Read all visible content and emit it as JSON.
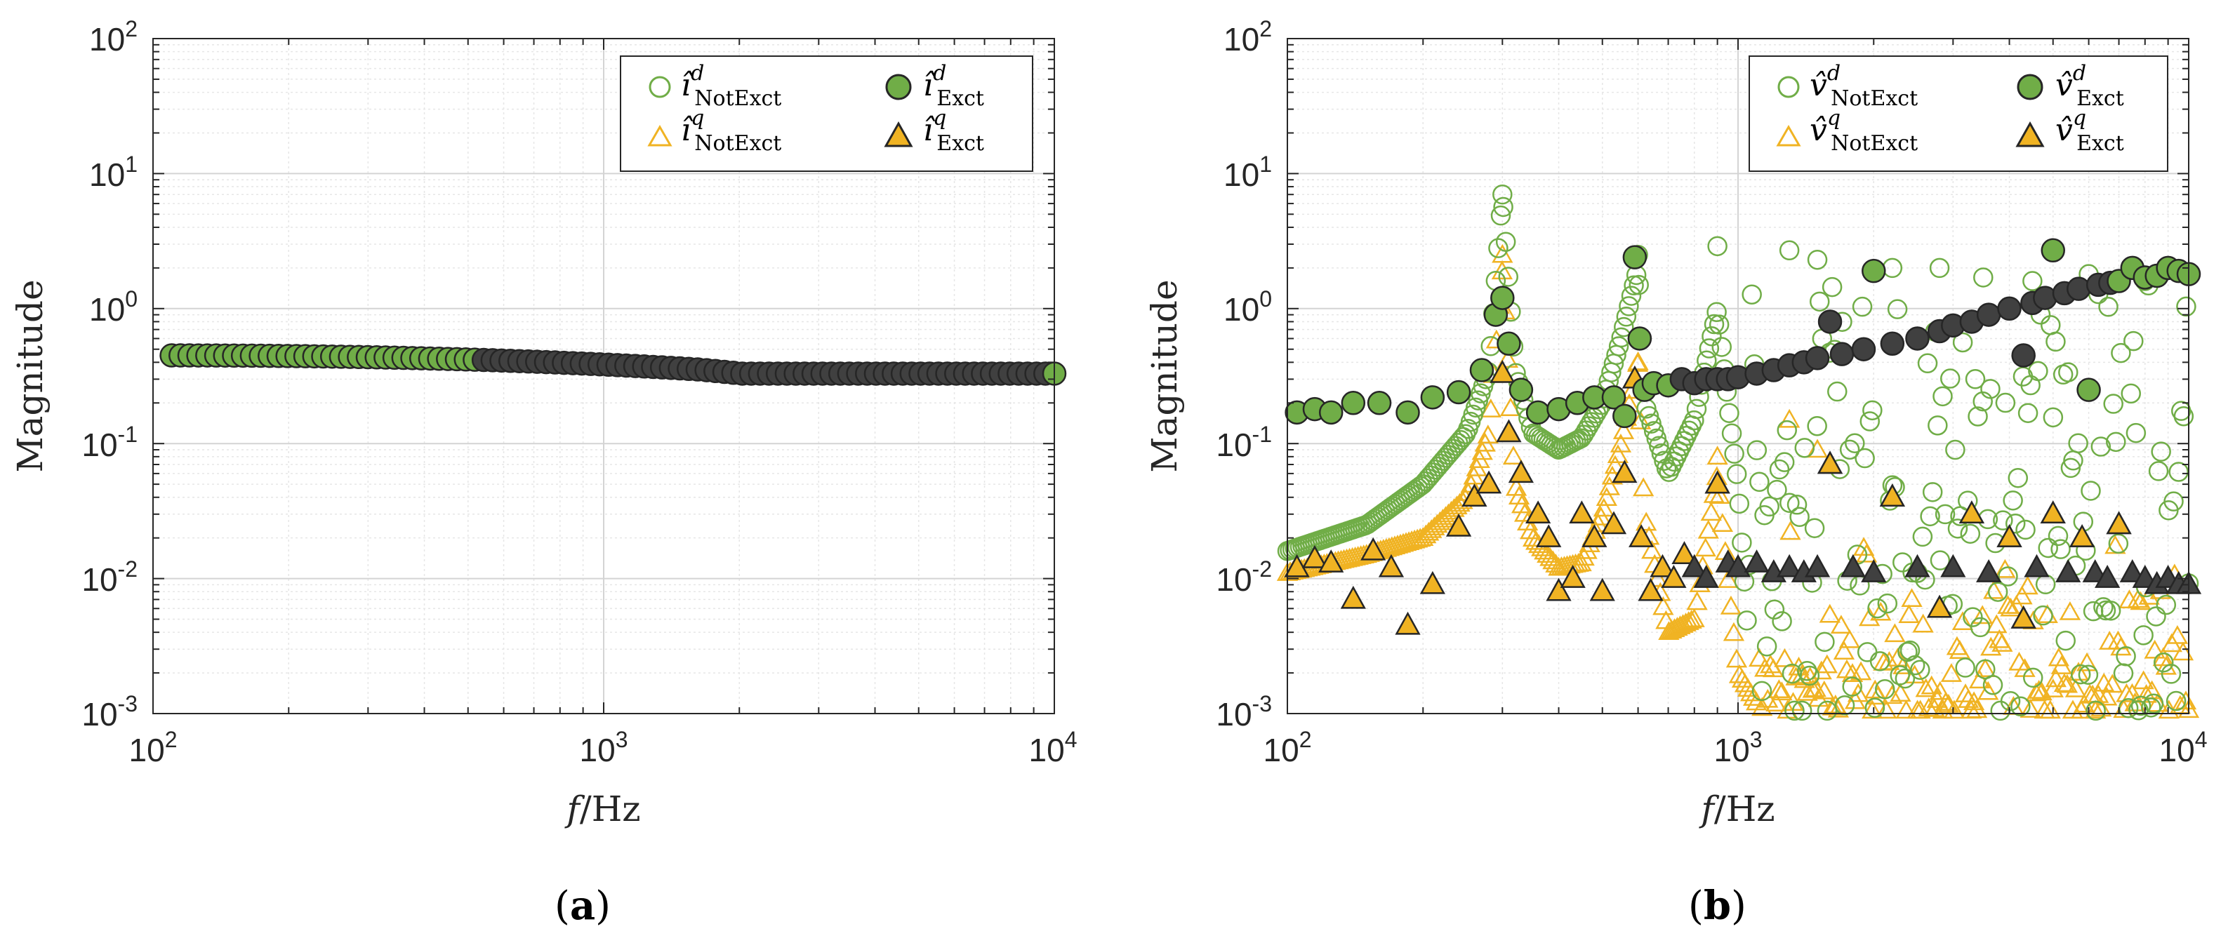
{
  "chart_data": [
    {
      "type": "scatter",
      "panel_label": "a",
      "xscale": "log",
      "yscale": "log",
      "xlim": [
        100,
        10000
      ],
      "ylim": [
        0.001,
        100
      ],
      "xlabel": {
        "var": "f",
        "unit": "/Hz"
      },
      "ylabel": "Magnitude",
      "x_ticks": [
        {
          "base": "10",
          "exp": "2"
        },
        {
          "base": "10",
          "exp": "3"
        },
        {
          "base": "10",
          "exp": "4"
        }
      ],
      "y_ticks": [
        {
          "base": "10",
          "exp": "-3"
        },
        {
          "base": "10",
          "exp": "-2"
        },
        {
          "base": "10",
          "exp": "-1"
        },
        {
          "base": "10",
          "exp": "0"
        },
        {
          "base": "10",
          "exp": "1"
        },
        {
          "base": "10",
          "exp": "2"
        }
      ],
      "grid": true,
      "legend": {
        "position": "top-right",
        "entries": [
          {
            "sym": "î",
            "sup": "d",
            "sub": "NotExct",
            "marker": "circle-open",
            "color": "#70AD47"
          },
          {
            "sym": "î",
            "sup": "d",
            "sub": "Exct",
            "marker": "circle-filled",
            "color": "#70AD47"
          },
          {
            "sym": "î",
            "sup": "q",
            "sub": "NotExct",
            "marker": "triangle-open",
            "color": "#F0B323"
          },
          {
            "sym": "î",
            "sup": "q",
            "sub": "Exct",
            "marker": "triangle-filled",
            "color": "#F0B323"
          }
        ]
      },
      "series": [
        {
          "name": "i_d_NotExct",
          "marker": "circle-open",
          "x_range": [
            100,
            10000
          ],
          "count": 100,
          "y_start": 0.45,
          "y_mid": 0.45,
          "y_end": 0.33
        },
        {
          "name": "i_d_Exct",
          "marker": "circle-filled",
          "x_range": [
            110,
            10000
          ],
          "count": 100,
          "y_start": 0.45,
          "y_mid": 0.45,
          "y_end": 0.33
        }
      ]
    },
    {
      "type": "scatter",
      "panel_label": "b",
      "xscale": "log",
      "yscale": "log",
      "xlim": [
        100,
        10000
      ],
      "ylim": [
        0.001,
        100
      ],
      "xlabel": {
        "var": "f",
        "unit": "/Hz"
      },
      "ylabel": "Magnitude",
      "x_ticks": [
        {
          "base": "10",
          "exp": "2"
        },
        {
          "base": "10",
          "exp": "3"
        },
        {
          "base": "10",
          "exp": "4"
        }
      ],
      "y_ticks": [
        {
          "base": "10",
          "exp": "-3"
        },
        {
          "base": "10",
          "exp": "-2"
        },
        {
          "base": "10",
          "exp": "-1"
        },
        {
          "base": "10",
          "exp": "0"
        },
        {
          "base": "10",
          "exp": "1"
        },
        {
          "base": "10",
          "exp": "2"
        }
      ],
      "grid": true,
      "legend": {
        "position": "top-right",
        "entries": [
          {
            "sym": "v̂",
            "sup": "d",
            "sub": "NotExct",
            "marker": "circle-open",
            "color": "#70AD47"
          },
          {
            "sym": "v̂",
            "sup": "d",
            "sub": "Exct",
            "marker": "circle-filled",
            "color": "#70AD47"
          },
          {
            "sym": "v̂",
            "sup": "q",
            "sub": "NotExct",
            "marker": "triangle-open",
            "color": "#F0B323"
          },
          {
            "sym": "v̂",
            "sup": "q",
            "sub": "Exct",
            "marker": "triangle-filled",
            "color": "#F0B323"
          }
        ]
      },
      "series": [
        {
          "name": "v_d_NotExct",
          "marker": "circle-open",
          "base_points": [
            [
              100,
              0.016
            ],
            [
              150,
              0.025
            ],
            [
              200,
              0.05
            ],
            [
              250,
              0.12
            ],
            [
              280,
              0.35
            ],
            [
              300,
              7.0
            ],
            [
              320,
              0.35
            ],
            [
              350,
              0.12
            ],
            [
              400,
              0.09
            ],
            [
              450,
              0.11
            ],
            [
              500,
              0.2
            ],
            [
              550,
              0.6
            ],
            [
              600,
              2.0
            ],
            [
              620,
              0.2
            ],
            [
              700,
              0.06
            ],
            [
              800,
              0.15
            ],
            [
              900,
              1.0
            ],
            [
              950,
              0.2
            ],
            [
              1000,
              0.05
            ],
            [
              1050,
              0.004
            ],
            [
              1200,
              0.08
            ],
            [
              1500,
              0.5
            ],
            [
              2000,
              0.8
            ],
            [
              3000,
              1.2
            ],
            [
              5000,
              1.2
            ],
            [
              10000,
              1.0
            ]
          ],
          "peaks": [
            [
              300,
              7.0
            ],
            [
              600,
              2.5
            ],
            [
              900,
              2.9
            ],
            [
              1300,
              2.7
            ],
            [
              1500,
              2.3
            ],
            [
              2200,
              2.0
            ],
            [
              2800,
              2.0
            ],
            [
              3500,
              1.7
            ],
            [
              4500,
              1.6
            ],
            [
              6000,
              1.8
            ],
            [
              8000,
              1.6
            ]
          ],
          "scatter_above_Hz": 1050,
          "scatter_ylim": [
            0.001,
            1.5
          ]
        },
        {
          "name": "v_d_Exct",
          "marker": "circle-filled",
          "points": [
            [
              105,
              0.17
            ],
            [
              115,
              0.18
            ],
            [
              125,
              0.17
            ],
            [
              140,
              0.2
            ],
            [
              160,
              0.2
            ],
            [
              185,
              0.17
            ],
            [
              210,
              0.22
            ],
            [
              240,
              0.24
            ],
            [
              270,
              0.35
            ],
            [
              290,
              0.9
            ],
            [
              300,
              1.2
            ],
            [
              310,
              0.55
            ],
            [
              330,
              0.25
            ],
            [
              360,
              0.17
            ],
            [
              400,
              0.18
            ],
            [
              440,
              0.2
            ],
            [
              480,
              0.22
            ],
            [
              530,
              0.22
            ],
            [
              560,
              0.16
            ],
            [
              590,
              2.4
            ],
            [
              605,
              0.6
            ],
            [
              620,
              0.25
            ],
            [
              650,
              0.28
            ],
            [
              700,
              0.27
            ],
            [
              750,
              0.3
            ],
            [
              800,
              0.28
            ],
            [
              850,
              0.3
            ],
            [
              900,
              0.3
            ],
            [
              950,
              0.3
            ],
            [
              1000,
              0.31
            ],
            [
              1100,
              0.33
            ],
            [
              1200,
              0.35
            ],
            [
              1300,
              0.38
            ],
            [
              1400,
              0.4
            ],
            [
              1500,
              0.43
            ],
            [
              1600,
              0.8
            ],
            [
              1700,
              0.46
            ],
            [
              1900,
              0.5
            ],
            [
              2000,
              1.9
            ],
            [
              2200,
              0.55
            ],
            [
              2500,
              0.6
            ],
            [
              2800,
              0.68
            ],
            [
              3000,
              0.75
            ],
            [
              3300,
              0.8
            ],
            [
              3600,
              0.9
            ],
            [
              4000,
              1.0
            ],
            [
              4300,
              0.45
            ],
            [
              4500,
              1.1
            ],
            [
              4800,
              1.2
            ],
            [
              5000,
              2.7
            ],
            [
              5300,
              1.3
            ],
            [
              5700,
              1.4
            ],
            [
              6000,
              0.25
            ],
            [
              6300,
              1.5
            ],
            [
              6700,
              1.55
            ],
            [
              7000,
              1.6
            ],
            [
              7500,
              2.0
            ],
            [
              8000,
              1.7
            ],
            [
              8500,
              1.75
            ],
            [
              9000,
              2.0
            ],
            [
              9500,
              1.9
            ],
            [
              10000,
              1.8
            ]
          ]
        },
        {
          "name": "v_q_NotExct",
          "marker": "triangle-open",
          "base_points": [
            [
              100,
              0.011
            ],
            [
              150,
              0.015
            ],
            [
              200,
              0.02
            ],
            [
              250,
              0.04
            ],
            [
              280,
              0.12
            ],
            [
              300,
              2.0
            ],
            [
              320,
              0.05
            ],
            [
              350,
              0.02
            ],
            [
              400,
              0.012
            ],
            [
              450,
              0.013
            ],
            [
              500,
              0.03
            ],
            [
              550,
              0.1
            ],
            [
              600,
              0.4
            ],
            [
              620,
              0.03
            ],
            [
              700,
              0.004
            ],
            [
              800,
              0.005
            ],
            [
              900,
              0.06
            ],
            [
              950,
              0.01
            ],
            [
              1000,
              0.002
            ],
            [
              1100,
              0.0012
            ],
            [
              1300,
              0.0012
            ],
            [
              1500,
              0.002
            ],
            [
              2000,
              0.002
            ],
            [
              10000,
              0.002
            ]
          ],
          "peaks": [
            [
              300,
              2.5
            ],
            [
              600,
              0.4
            ],
            [
              900,
              0.08
            ],
            [
              1300,
              0.15
            ],
            [
              1500,
              0.09
            ]
          ],
          "scatter_above_Hz": 1100,
          "scatter_ylim": [
            0.001,
            0.03
          ]
        },
        {
          "name": "v_q_Exct",
          "marker": "triangle-filled",
          "points": [
            [
              105,
              0.012
            ],
            [
              115,
              0.014
            ],
            [
              125,
              0.013
            ],
            [
              140,
              0.007
            ],
            [
              155,
              0.016
            ],
            [
              170,
              0.012
            ],
            [
              185,
              0.0045
            ],
            [
              210,
              0.009
            ],
            [
              240,
              0.024
            ],
            [
              260,
              0.04
            ],
            [
              280,
              0.05
            ],
            [
              300,
              0.33
            ],
            [
              310,
              0.12
            ],
            [
              330,
              0.06
            ],
            [
              360,
              0.03
            ],
            [
              380,
              0.02
            ],
            [
              400,
              0.008
            ],
            [
              430,
              0.01
            ],
            [
              450,
              0.03
            ],
            [
              480,
              0.02
            ],
            [
              500,
              0.008
            ],
            [
              530,
              0.025
            ],
            [
              560,
              0.06
            ],
            [
              590,
              0.3
            ],
            [
              610,
              0.02
            ],
            [
              640,
              0.008
            ],
            [
              680,
              0.012
            ],
            [
              720,
              0.01
            ],
            [
              760,
              0.015
            ],
            [
              800,
              0.012
            ],
            [
              850,
              0.01
            ],
            [
              900,
              0.05
            ],
            [
              950,
              0.013
            ],
            [
              1000,
              0.012
            ],
            [
              1100,
              0.013
            ],
            [
              1200,
              0.011
            ],
            [
              1300,
              0.012
            ],
            [
              1400,
              0.011
            ],
            [
              1500,
              0.012
            ],
            [
              1600,
              0.07
            ],
            [
              1800,
              0.012
            ],
            [
              2000,
              0.011
            ],
            [
              2200,
              0.04
            ],
            [
              2500,
              0.012
            ],
            [
              2800,
              0.006
            ],
            [
              3000,
              0.012
            ],
            [
              3300,
              0.03
            ],
            [
              3600,
              0.011
            ],
            [
              4000,
              0.02
            ],
            [
              4300,
              0.005
            ],
            [
              4600,
              0.012
            ],
            [
              5000,
              0.03
            ],
            [
              5400,
              0.011
            ],
            [
              5800,
              0.02
            ],
            [
              6200,
              0.011
            ],
            [
              6600,
              0.01
            ],
            [
              7000,
              0.025
            ],
            [
              7500,
              0.011
            ],
            [
              8000,
              0.01
            ],
            [
              8500,
              0.009
            ],
            [
              9000,
              0.01
            ],
            [
              9500,
              0.009
            ],
            [
              10000,
              0.009
            ]
          ]
        }
      ]
    }
  ],
  "colors": {
    "green": "#70AD47",
    "yellow": "#F0B323",
    "dark_fill": "#404040",
    "marker_edge": "#262626",
    "grid": "#dcdcdc",
    "axis": "#262626"
  }
}
